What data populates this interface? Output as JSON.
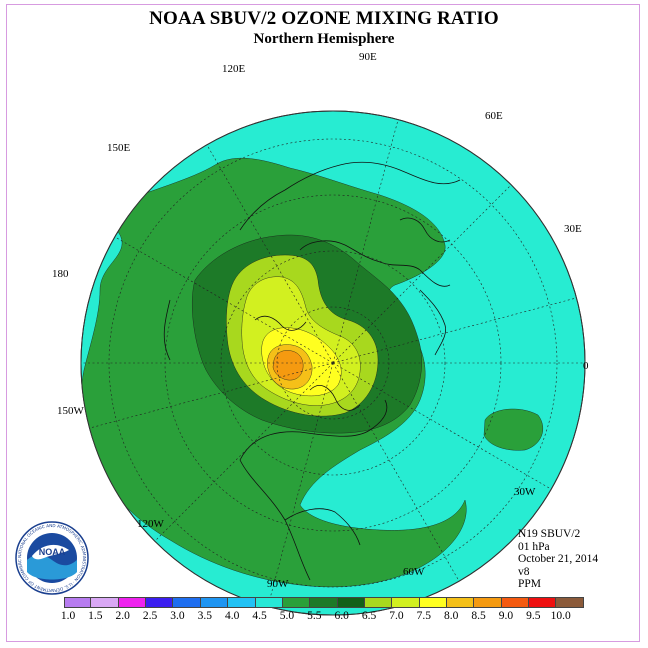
{
  "header": {
    "title": "NOAA SBUV/2 OZONE MIXING RATIO",
    "subtitle": "Northern Hemisphere"
  },
  "longitude_labels": {
    "lon_90e": "90E",
    "lon_120e": "120E",
    "lon_60e": "60E",
    "lon_150e": "150E",
    "lon_30e": "30E",
    "lon_180": "180",
    "lon_0": "0",
    "lon_150w": "150W",
    "lon_30w": "30W",
    "lon_120w": "120W",
    "lon_60w": "60W",
    "lon_90w": "90W"
  },
  "info": {
    "instrument": "N19 SBUV/2",
    "level": "01 hPa",
    "date": "October 21, 2014",
    "version": "v8",
    "units": "PPM"
  },
  "logo": {
    "text": "NOAA",
    "ring_text": "NATIONAL OCEANIC AND ATMOSPHERIC ADMINISTRATION · U.S. DEPARTMENT OF COMMERCE"
  },
  "colorbar": {
    "ticks": [
      "1.0",
      "1.5",
      "2.0",
      "2.5",
      "3.0",
      "3.5",
      "4.0",
      "4.5",
      "5.0",
      "5.5",
      "6.0",
      "6.5",
      "7.0",
      "7.5",
      "8.0",
      "8.5",
      "9.0",
      "9.5",
      "10.0"
    ],
    "colors": [
      "#b77cf0",
      "#d9a8f5",
      "#ee22ee",
      "#3b1ef0",
      "#1e6ef0",
      "#1f95f2",
      "#22c2f5",
      "#27e8d6",
      "#2aa03a",
      "#1d7a28",
      "#126018",
      "#a8d81e",
      "#d2f020",
      "#ffff20",
      "#f5c018",
      "#f59a10",
      "#f55a10",
      "#ee1010",
      "#8b5a3a"
    ]
  },
  "colors": {
    "background_field": "#27ecd2",
    "band_5_0": "#2aa03a",
    "band_5_5": "#1d7a28",
    "band_6_5": "#a8d81e",
    "band_7_0": "#d2f020",
    "band_7_5": "#ffff20",
    "band_8_0": "#f5c018",
    "band_8_5": "#f59a10"
  }
}
